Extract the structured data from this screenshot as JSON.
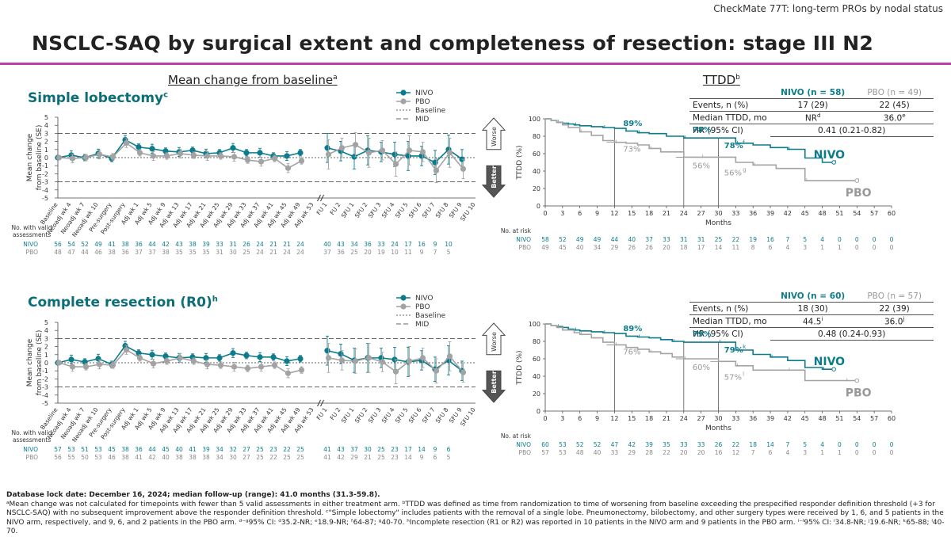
{
  "header": {
    "top_right": "CheckMate 77T: long-term PROs by nodal status",
    "title": "NSCLC-SAQ by surgical extent and completeness of resection: stage III N2"
  },
  "sections": {
    "mean_change": "Mean change from baseline",
    "mean_change_sup": "a",
    "ttdd": "TTDD",
    "ttdd_sup": "b"
  },
  "colors": {
    "nivo": "#0c7c8c",
    "pbo": "#a3a3a3",
    "accent": "#c03ab0"
  },
  "labels": {
    "legend_nivo": "NIVO",
    "legend_pbo": "PBO",
    "legend_baseline": "Baseline",
    "legend_mid": "MID",
    "ylabel_1": "Mean change",
    "ylabel_2": "from baseline (SE)",
    "worse": "Worse",
    "better": "Better",
    "valid_1": "No. with valid",
    "valid_2": "assessments",
    "nivo": "NIVO",
    "pbo": "PBO",
    "at_risk": "No. at risk",
    "ttdd_axis": "TTDD (%)",
    "months": "Months",
    "nivo_big": "NIVO",
    "pbo_big": "PBO"
  },
  "panels": [
    {
      "title": "Simple lobectomy",
      "title_sup": "c",
      "stats": {
        "nivo_head": "NIVO (n = 58)",
        "pbo_head": "PBO (n = 49)",
        "rows": [
          {
            "label": "Events, n (%)",
            "nivo": "17 (29)",
            "pbo": "22 (45)"
          },
          {
            "label": "Median TTDD, mo",
            "nivo": "NR",
            "nivo_sup": "d",
            "pbo": "36.0",
            "pbo_sup": "e"
          },
          {
            "label": "HR (95% CI)",
            "combined": "0.41 (0.21-0.82)"
          }
        ]
      },
      "annotations": {
        "nivo_12": "89%",
        "pbo_12": "73%",
        "nivo_24": "78%",
        "pbo_24": "56%",
        "nivo_30": "78%",
        "nivo_30_sup": "f",
        "pbo_30": "56%",
        "pbo_30_sup": "g"
      },
      "valid_nivo": [
        "56",
        "54",
        "52",
        "49",
        "41",
        "38",
        "36",
        "44",
        "42",
        "43",
        "38",
        "39",
        "33",
        "31",
        "26",
        "24",
        "21",
        "21",
        "24",
        "40",
        "43",
        "34",
        "36",
        "33",
        "24",
        "17",
        "16",
        "9",
        "10"
      ],
      "valid_pbo": [
        "48",
        "47",
        "44",
        "46",
        "38",
        "36",
        "37",
        "37",
        "38",
        "35",
        "35",
        "35",
        "31",
        "30",
        "25",
        "24",
        "21",
        "24",
        "24",
        "37",
        "36",
        "25",
        "20",
        "19",
        "10",
        "11",
        "9",
        "7",
        "5"
      ],
      "at_risk_nivo": [
        "58",
        "52",
        "49",
        "49",
        "44",
        "40",
        "37",
        "33",
        "31",
        "31",
        "25",
        "22",
        "19",
        "16",
        "7",
        "5",
        "4",
        "0",
        "0",
        "0",
        "0"
      ],
      "at_risk_pbo": [
        "49",
        "45",
        "40",
        "34",
        "29",
        "26",
        "26",
        "20",
        "18",
        "17",
        "14",
        "11",
        "8",
        "6",
        "4",
        "3",
        "1",
        "1",
        "0",
        "0",
        "0"
      ]
    },
    {
      "title": "Complete resection (R0)",
      "title_sup": "h",
      "stats": {
        "nivo_head": "NIVO (n = 60)",
        "pbo_head": "PBO (n = 57)",
        "rows": [
          {
            "label": "Events, n (%)",
            "nivo": "18 (30)",
            "pbo": "22 (39)"
          },
          {
            "label": "Median TTDD, mo",
            "nivo": "44.5",
            "nivo_sup": "i",
            "pbo": "36.0",
            "pbo_sup": "j"
          },
          {
            "label": "HR (95% CI)",
            "combined": "0.48 (0.24-0.93)"
          }
        ]
      },
      "annotations": {
        "nivo_12": "89%",
        "pbo_12": "76%",
        "nivo_24": "79%",
        "pbo_24": "60%",
        "nivo_30": "79%",
        "nivo_30_sup": "k",
        "pbo_30": "57%",
        "pbo_30_sup": "l"
      },
      "valid_nivo": [
        "57",
        "53",
        "51",
        "53",
        "45",
        "38",
        "36",
        "44",
        "45",
        "40",
        "41",
        "39",
        "34",
        "32",
        "27",
        "25",
        "23",
        "22",
        "25",
        "41",
        "43",
        "37",
        "30",
        "25",
        "23",
        "17",
        "14",
        "9",
        "6"
      ],
      "valid_pbo": [
        "56",
        "55",
        "50",
        "53",
        "46",
        "38",
        "41",
        "42",
        "40",
        "38",
        "38",
        "38",
        "34",
        "30",
        "27",
        "25",
        "22",
        "25",
        "25",
        "41",
        "42",
        "29",
        "21",
        "25",
        "23",
        "14",
        "9",
        "6",
        "5"
      ],
      "at_risk_nivo": [
        "60",
        "53",
        "52",
        "52",
        "47",
        "42",
        "39",
        "35",
        "33",
        "33",
        "26",
        "22",
        "18",
        "14",
        "7",
        "5",
        "4",
        "0",
        "0",
        "0",
        "0"
      ],
      "at_risk_pbo": [
        "57",
        "53",
        "48",
        "40",
        "33",
        "29",
        "28",
        "22",
        "20",
        "20",
        "16",
        "12",
        "7",
        "6",
        "4",
        "3",
        "1",
        "1",
        "0",
        "0",
        "0"
      ]
    }
  ],
  "chart_data": [
    {
      "type": "line",
      "panel": "Simple lobectomy - mean change from baseline",
      "ylabel": "Mean change from baseline (SE)",
      "ylim": [
        -5,
        5
      ],
      "yticks": [
        5,
        4,
        3,
        2,
        1,
        0,
        -1,
        -2,
        -3,
        -4,
        -5
      ],
      "categories": [
        "Baseline",
        "Neoadj wk 4",
        "Neoadj wk 7",
        "Neoadj wk 10",
        "Pre-surgery",
        "Post-surgery",
        "Adj wk 1",
        "Adj wk 5",
        "Adj wk 9",
        "Adj wk 13",
        "Adj wk 17",
        "Adj wk 21",
        "Adj wk 25",
        "Adj wk 29",
        "Adj wk 33",
        "Adj wk 37",
        "Adj wk 41",
        "Adj wk 45",
        "Adj wk 49",
        "Adj wk 53",
        "FU 1",
        "FU 2",
        "SFU 1",
        "SFU 2",
        "SFU 3",
        "SFU 4",
        "SFU 5",
        "SFU 6",
        "SFU 7",
        "SFU 8",
        "SFU 9",
        "SFU 10"
      ],
      "reference_lines": {
        "Baseline": 0,
        "MID": [
          3,
          -3
        ]
      },
      "series": [
        {
          "name": "NIVO",
          "values": [
            0,
            0.3,
            0,
            0.5,
            -0.1,
            2.2,
            1.3,
            1.1,
            0.8,
            0.7,
            0.9,
            0.5,
            0.6,
            1.2,
            0.6,
            0.6,
            0.2,
            0.2,
            0.6,
            null,
            1.2,
            0.8,
            0.1,
            0.9,
            0.7,
            0.4,
            0.2,
            0.2,
            -0.6,
            1,
            -0.2,
            null
          ]
        },
        {
          "name": "PBO",
          "values": [
            0,
            -0.1,
            0,
            0.4,
            0.1,
            1.8,
            0.6,
            0.2,
            0.2,
            0.5,
            0.3,
            0.2,
            0.2,
            0.1,
            -0.3,
            -0.5,
            -0.1,
            -1.3,
            -0.4,
            null,
            0.4,
            1.2,
            1.6,
            0.6,
            0.9,
            -0.8,
            0.9,
            0.7,
            -1.6,
            0.6,
            -1.4,
            null
          ]
        }
      ]
    },
    {
      "type": "line",
      "panel": "Simple lobectomy - TTDD",
      "xlabel": "Months",
      "ylabel": "TTDD (%)",
      "xlim": [
        0,
        60
      ],
      "ylim": [
        0,
        100
      ],
      "series": [
        {
          "name": "NIVO",
          "x": [
            0,
            1,
            2,
            3,
            4,
            5,
            6,
            8,
            10,
            12,
            14,
            16,
            18,
            21,
            24,
            27,
            30,
            33,
            36,
            39,
            42,
            45,
            48,
            50
          ],
          "y": [
            100,
            98,
            96,
            95,
            94,
            93,
            92,
            91,
            90,
            89,
            86,
            84,
            83,
            80,
            78,
            78,
            78,
            72,
            70,
            67,
            65,
            55,
            50,
            50
          ]
        },
        {
          "name": "PBO",
          "x": [
            0,
            1,
            2,
            3,
            4,
            6,
            8,
            10,
            12,
            14,
            16,
            18,
            20,
            24,
            27,
            30,
            33,
            36,
            40,
            42,
            45,
            48,
            52,
            54
          ],
          "y": [
            100,
            98,
            96,
            93,
            90,
            85,
            81,
            75,
            73,
            72,
            70,
            66,
            62,
            56,
            56,
            56,
            50,
            47,
            43,
            43,
            29,
            29,
            29,
            29
          ]
        }
      ]
    },
    {
      "type": "line",
      "panel": "Complete resection (R0) - mean change from baseline",
      "ylabel": "Mean change from baseline (SE)",
      "ylim": [
        -5,
        5
      ],
      "yticks": [
        5,
        4,
        3,
        2,
        1,
        0,
        -1,
        -2,
        -3,
        -4,
        -5
      ],
      "categories": [
        "Baseline",
        "Neoadj wk 4",
        "Neoadj wk 7",
        "Neoadj wk 10",
        "Pre-surgery",
        "Post-surgery",
        "Adj wk 1",
        "Adj wk 5",
        "Adj wk 9",
        "Adj wk 13",
        "Adj wk 17",
        "Adj wk 21",
        "Adj wk 25",
        "Adj wk 29",
        "Adj wk 33",
        "Adj wk 37",
        "Adj wk 41",
        "Adj wk 45",
        "Adj wk 49",
        "Adj wk 53",
        "FU 1",
        "FU 2",
        "SFU 1",
        "SFU 2",
        "SFU 3",
        "SFU 4",
        "SFU 5",
        "SFU 6",
        "SFU 7",
        "SFU 8",
        "SFU 9",
        "SFU 10"
      ],
      "reference_lines": {
        "Baseline": 0,
        "MID": [
          3,
          -3
        ]
      },
      "series": [
        {
          "name": "NIVO",
          "values": [
            0,
            0.4,
            0.1,
            0.5,
            -0.2,
            2.1,
            1.2,
            1,
            0.8,
            0.6,
            0.7,
            0.6,
            0.6,
            1.2,
            0.9,
            0.7,
            0.7,
            0.2,
            0.5,
            null,
            1.5,
            1.1,
            0.3,
            0.6,
            0.6,
            0.4,
            0.1,
            0.3,
            -0.8,
            0.3,
            -1,
            null
          ]
        },
        {
          "name": "PBO",
          "values": [
            0,
            -0.5,
            -0.5,
            -0.2,
            -0.3,
            1.6,
            0.6,
            -0.1,
            0.2,
            0.6,
            0.2,
            -0.2,
            -0.3,
            -0.5,
            -0.7,
            -0.5,
            -0.3,
            -1.3,
            -0.9,
            null,
            0.6,
            0.3,
            0.2,
            0.6,
            0.1,
            -1.1,
            0.2,
            0.6,
            -1,
            0.8,
            -1.2,
            null
          ]
        }
      ]
    },
    {
      "type": "line",
      "panel": "Complete resection (R0) - TTDD",
      "xlabel": "Months",
      "ylabel": "TTDD (%)",
      "xlim": [
        0,
        60
      ],
      "ylim": [
        0,
        100
      ],
      "series": [
        {
          "name": "NIVO",
          "x": [
            0,
            1,
            2,
            3,
            4,
            5,
            6,
            8,
            10,
            12,
            14,
            16,
            18,
            20,
            22,
            24,
            27,
            30,
            33,
            36,
            39,
            42,
            45,
            48,
            50
          ],
          "y": [
            100,
            98,
            97,
            96,
            94,
            93,
            92,
            91,
            90,
            89,
            86,
            85,
            84,
            82,
            80,
            79,
            79,
            79,
            70,
            65,
            62,
            58,
            50,
            48,
            48
          ]
        },
        {
          "name": "PBO",
          "x": [
            0,
            1,
            2,
            3,
            5,
            6,
            8,
            10,
            12,
            14,
            16,
            18,
            20,
            22,
            24,
            27,
            30,
            33,
            36,
            40,
            42,
            45,
            48,
            52,
            54
          ],
          "y": [
            100,
            98,
            96,
            93,
            90,
            88,
            84,
            79,
            76,
            73,
            71,
            68,
            66,
            62,
            60,
            60,
            57,
            52,
            47,
            47,
            47,
            35,
            35,
            35,
            35
          ]
        }
      ]
    }
  ],
  "footnotes": {
    "lock": "Database lock date: December 16, 2024; median follow-up (range): 41.0 months (31.3-59.8).",
    "text": "ᵃMean change was not calculated for timepoints with fewer than 5 valid assessments in either treatment arm. ᵇTTDD was defined as time from randomization to time of worsening from baseline exceeding the prespecified responder definition threshold (+3 for NSCLC-SAQ) with no subsequent improvement above the responder definition threshold. ᶜ\"Simple lobectomy\" includes patients with the removal of a single lobe. Pneumonectomy, bilobectomy, and other surgery types were received by 1, 6, and 5 patients in the NIVO arm, respectively, and 9, 6, and 2 patients in the PBO arm. ᵈ⁻ᵍ95% CI: ᵈ35.2-NR; ᵉ18.9-NR; ᶠ64-87; ᵍ40-70. ʰIncomplete resection (R1 or R2) was reported in 10 patients in the NIVO arm and 9 patients in the PBO arm. ⁱ⁻ˡ95% CI: ⁱ34.8-NR; ʲ19.6-NR; ᵏ65-88; ˡ40-70."
  }
}
